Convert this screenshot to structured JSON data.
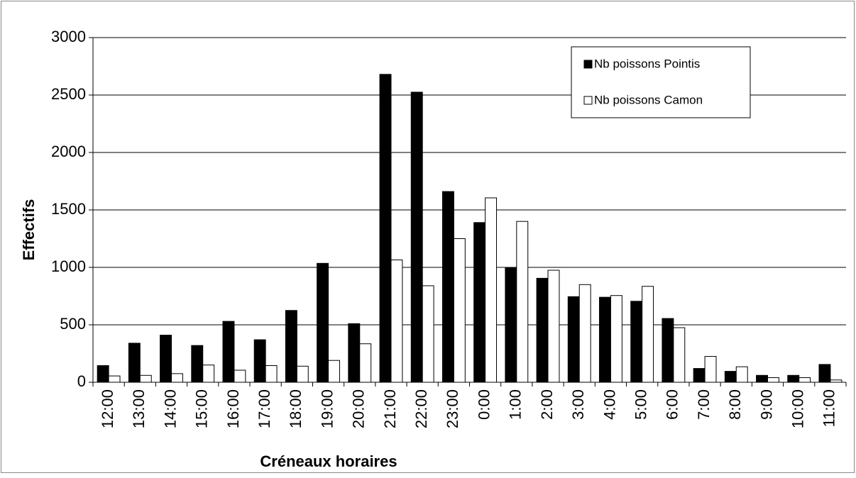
{
  "chart_data": {
    "type": "bar",
    "x_label": "Créneaux horaires",
    "y_label": "Effectifs",
    "categories": [
      "12:00",
      "13:00",
      "14:00",
      "15:00",
      "16:00",
      "17:00",
      "18:00",
      "19:00",
      "20:00",
      "21:00",
      "22:00",
      "23:00",
      "0:00",
      "1:00",
      "2:00",
      "3:00",
      "4:00",
      "5:00",
      "6:00",
      "7:00",
      "8:00",
      "9:00",
      "10:00",
      "11:00"
    ],
    "series": [
      {
        "name": "Nb poissons Pointis",
        "color": "#000000",
        "values": [
          145,
          340,
          410,
          320,
          530,
          370,
          625,
          1035,
          510,
          2680,
          2525,
          1660,
          1390,
          1000,
          905,
          745,
          740,
          705,
          555,
          120,
          95,
          60,
          60,
          155
        ]
      },
      {
        "name": "Nb poissons Camon",
        "color": "#ffffff",
        "values": [
          55,
          60,
          75,
          150,
          105,
          145,
          140,
          190,
          335,
          1065,
          840,
          1250,
          1605,
          1400,
          975,
          850,
          755,
          835,
          475,
          225,
          135,
          40,
          40,
          20
        ]
      }
    ],
    "ylim": [
      0,
      3000
    ],
    "yticks": [
      0,
      500,
      1000,
      1500,
      2000,
      2500,
      3000
    ],
    "grid": true,
    "legend": "top-right"
  }
}
